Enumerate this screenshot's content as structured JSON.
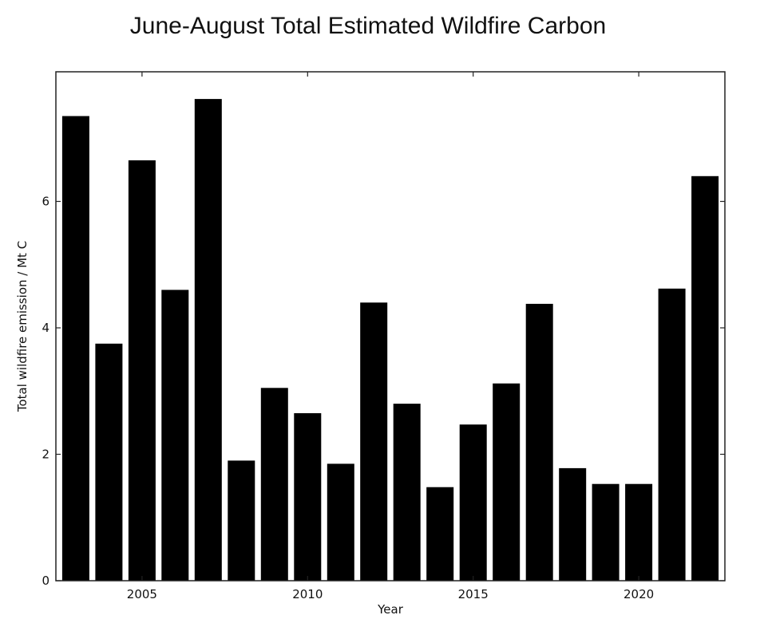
{
  "chart_data": {
    "type": "bar",
    "title": "June-August  Total Estimated Wildfire Carbon",
    "xlabel": "Year",
    "ylabel": "Total wildfire emission / Mt C",
    "x": [
      2003,
      2004,
      2005,
      2006,
      2007,
      2008,
      2009,
      2010,
      2011,
      2012,
      2013,
      2014,
      2015,
      2016,
      2017,
      2018,
      2019,
      2020,
      2021,
      2022
    ],
    "values": [
      7.35,
      3.75,
      6.65,
      4.6,
      7.62,
      1.9,
      3.05,
      2.65,
      1.85,
      4.4,
      2.8,
      1.48,
      2.47,
      3.12,
      4.38,
      1.78,
      1.53,
      1.53,
      4.62,
      6.4
    ],
    "xticks": [
      2005,
      2010,
      2015,
      2020
    ],
    "yticks": [
      0,
      2,
      4,
      6
    ],
    "xlim": [
      2002.4,
      2022.6
    ],
    "ylim": [
      0,
      8.05
    ],
    "bar_color": "#000000",
    "grid": false,
    "legend": "none"
  }
}
